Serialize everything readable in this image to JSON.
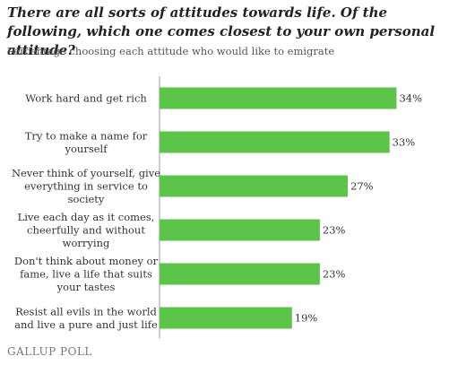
{
  "title": "There are all sorts of attitudes towards life. Of the following, which one comes closest to your own personal attitude?",
  "subtitle": "Percentage choosing each attitude who would like to emigrate",
  "logo": "GALLUP POLL",
  "chart_data": {
    "type": "bar",
    "orientation": "horizontal",
    "categories": [
      [
        "Work hard and get rich"
      ],
      [
        "Try to make a name for",
        "yourself"
      ],
      [
        "Never think of yourself, give",
        "everything in service to",
        "society"
      ],
      [
        "Live each day as it comes,",
        "cheerfully and without",
        "worrying"
      ],
      [
        "Don't think about money or",
        "fame, live a life that suits",
        "your tastes"
      ],
      [
        "Resist all evils in the world",
        "and live a pure and just life"
      ]
    ],
    "values": [
      34,
      33,
      27,
      23,
      23,
      19
    ],
    "value_labels": [
      "34%",
      "33%",
      "27%",
      "23%",
      "23%",
      "19%"
    ],
    "bar_color": "#5dc44a",
    "xlim": [
      0,
      36
    ]
  }
}
